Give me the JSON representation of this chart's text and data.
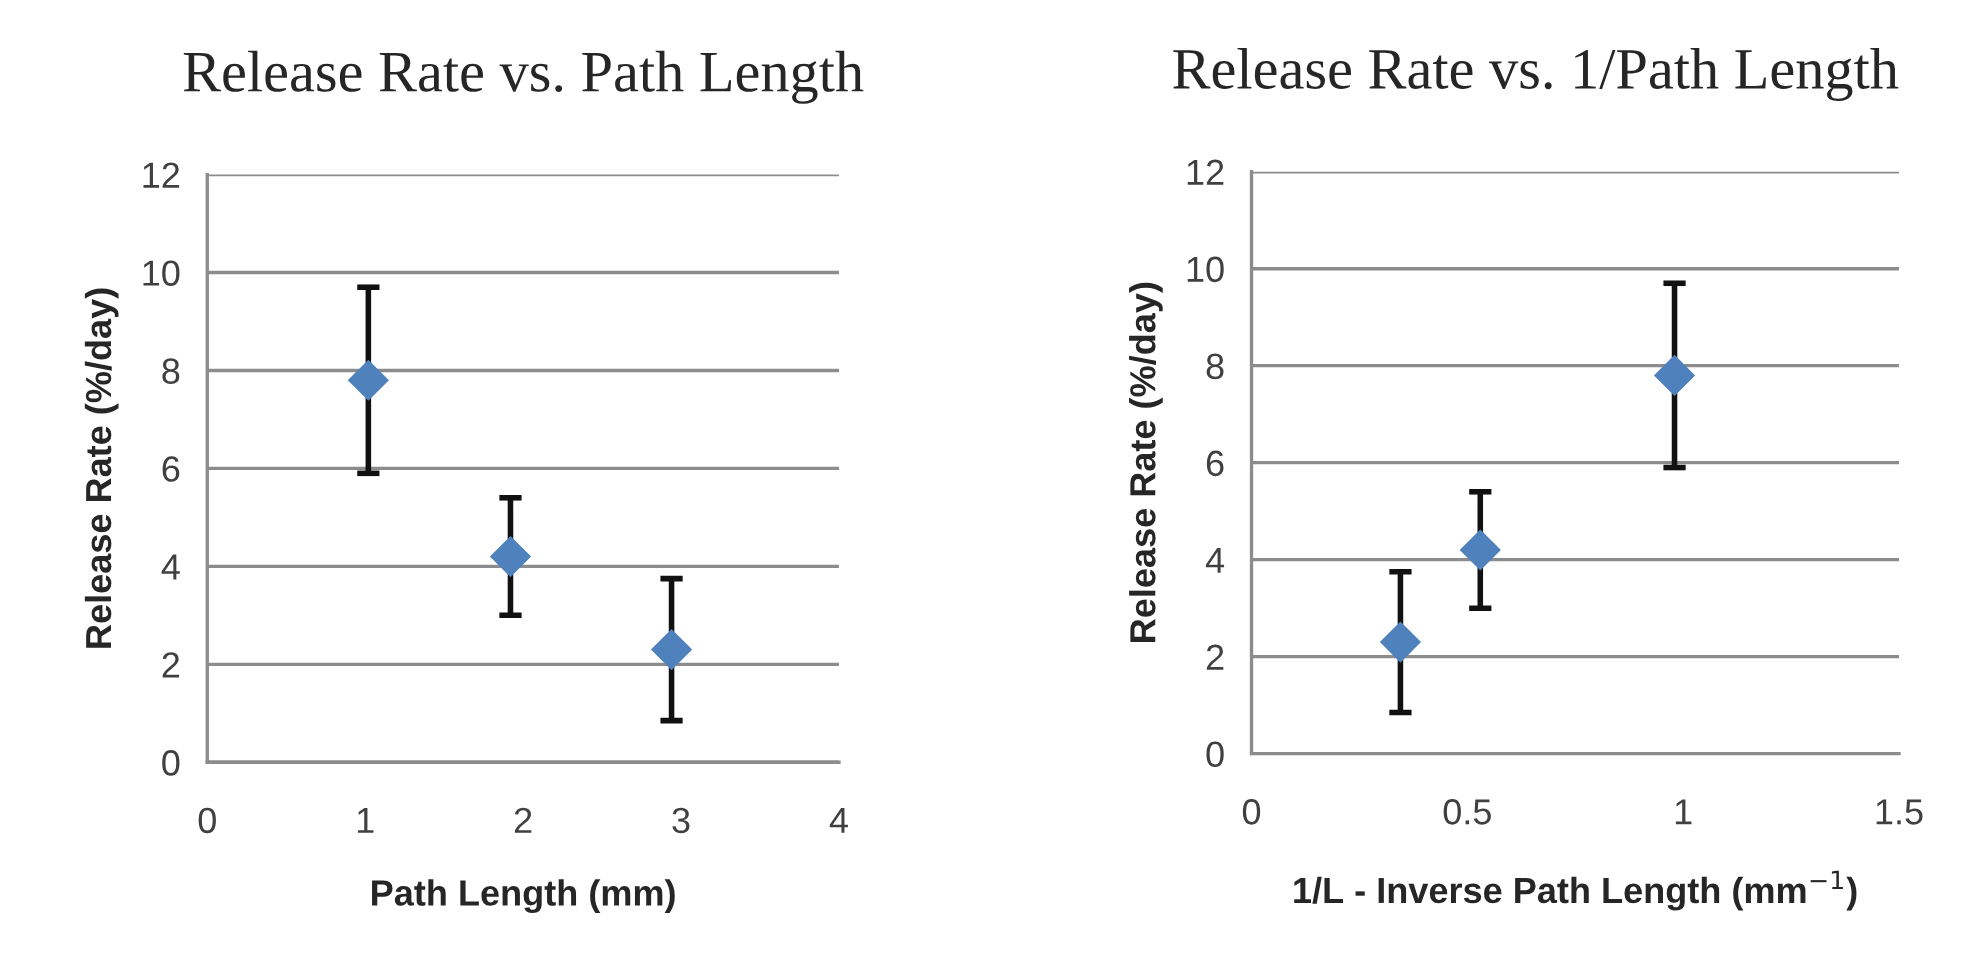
{
  "chart_data": [
    {
      "type": "scatter",
      "title": "Release Rate vs. Path Length",
      "xlabel": "Path Length (mm)",
      "ylabel": "Release Rate (%/day)",
      "series": [
        {
          "color": "#4f81bd",
          "x": [
            1.02,
            1.92,
            2.94
          ],
          "values": [
            7.8,
            4.2,
            2.3
          ],
          "errors": [
            1.9,
            1.2,
            1.45
          ]
        }
      ],
      "xlim": [
        0,
        4
      ],
      "xticks": [
        0,
        1,
        2,
        3,
        4
      ],
      "ylim": [
        0,
        12
      ],
      "yticks": [
        0,
        2,
        4,
        6,
        8,
        10,
        12
      ],
      "grid": "y",
      "marker": "diamond"
    },
    {
      "type": "scatter",
      "title": "Release Rate vs. 1/Path Length",
      "xlabel": "1/L - Inverse Path Length (mm$^{−1}$)",
      "ylabel": "Release Rate (%/day)",
      "series": [
        {
          "color": "#4f81bd",
          "x": [
            0.345,
            0.53,
            0.98
          ],
          "values": [
            2.3,
            4.2,
            7.8
          ],
          "errors": [
            1.45,
            1.2,
            1.9
          ]
        }
      ],
      "xlim": [
        0,
        1.5
      ],
      "xticks": [
        0,
        0.5,
        1,
        1.5
      ],
      "ylim": [
        0,
        12
      ],
      "yticks": [
        0,
        2,
        4,
        6,
        8,
        10,
        12
      ],
      "grid": "y",
      "marker": "diamond"
    }
  ]
}
